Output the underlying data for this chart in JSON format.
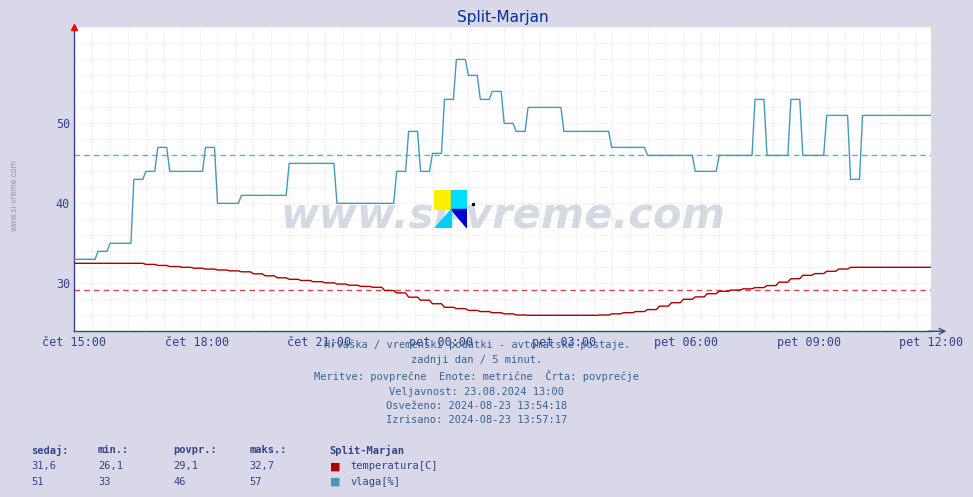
{
  "title": "Split-Marjan",
  "background_color": "#d8d8e8",
  "plot_bg_color": "#ffffff",
  "grid_color_v": "#cc8888",
  "grid_color_h": "#cc8888",
  "minor_grid_color": "#ddddee",
  "x_labels": [
    "čet 15:00",
    "čet 18:00",
    "čet 21:00",
    "pet 00:00",
    "pet 03:00",
    "pet 06:00",
    "pet 09:00",
    "pet 12:00"
  ],
  "x_ticks_norm": [
    0.0,
    0.142857,
    0.285714,
    0.428571,
    0.571429,
    0.714286,
    0.857143,
    1.0
  ],
  "total_points": 288,
  "ylim": [
    24.0,
    62.0
  ],
  "yticks": [
    30,
    40,
    50
  ],
  "temp_avg_line": 29.1,
  "vlaga_avg_line": 46.0,
  "temp_color": "#aa0000",
  "vlaga_color": "#4499bb",
  "avg_line_temp_color": "#dd4444",
  "avg_line_vlaga_color": "#44bbdd",
  "subtitle_lines": [
    "Hrvaška / vremenski podatki - avtomatske postaje.",
    "zadnji dan / 5 minut.",
    "Meritve: povprečne  Enote: metrične  Črta: povprečje",
    "Veljavnost: 23.08.2024 13:00",
    "Osveženo: 2024-08-23 13:54:18",
    "Izrisano: 2024-08-23 13:57:17"
  ],
  "legend_title": "Split-Marjan",
  "legend_items": [
    {
      "label": "temperatura[C]",
      "color": "#aa0000"
    },
    {
      "label": "vlaga[%]",
      "color": "#4499bb"
    }
  ],
  "stats_headers": [
    "sedaj:",
    "min.:",
    "povpr.:",
    "maks.:"
  ],
  "stats_temp": [
    "31,6",
    "26,1",
    "29,1",
    "32,7"
  ],
  "stats_vlaga": [
    "51",
    "33",
    "46",
    "57"
  ],
  "watermark": "www.si-vreme.com",
  "watermark_color": "#1a3a6a",
  "side_text": "www.si-vreme.com"
}
